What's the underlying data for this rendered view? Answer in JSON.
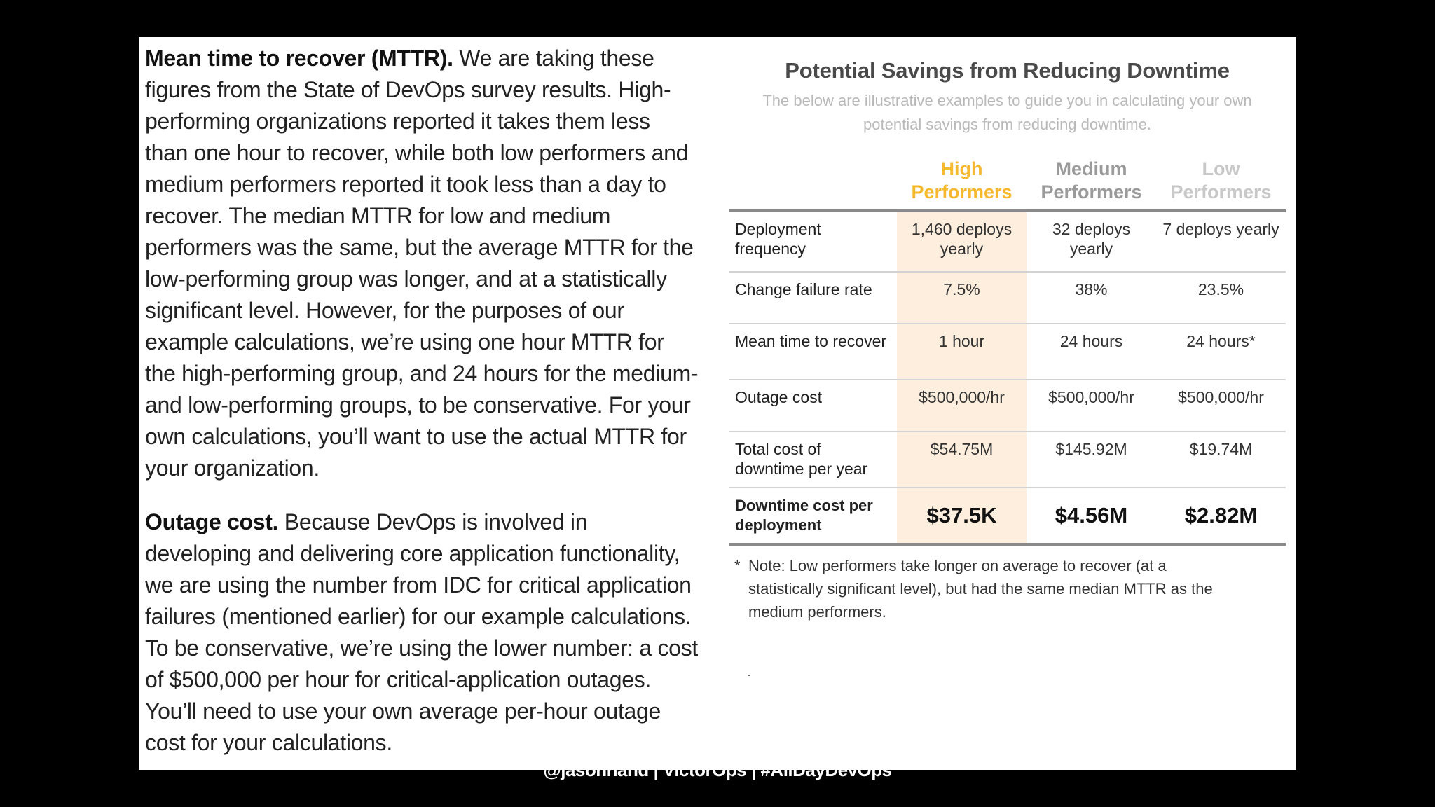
{
  "left_column": {
    "mttr_heading": "Mean time to recover (MTTR).",
    "mttr_body": " We are taking these figures from the State of DevOps survey results. High-performing organizations reported it takes them less than one hour to recover, while both low performers and medium performers reported it took less than a day to recover. The median MTTR for low and medium performers was the same, but the average MTTR for the low-performing group was longer, and at a statistically significant level. However, for the purposes of our example calculations, we’re using one hour MTTR for the high-performing group, and 24 hours for the medium- and low-performing groups, to be conservative. For your own calculations, you’ll want to use the actual MTTR for your organization.",
    "outage_heading": "Outage cost.",
    "outage_body": " Because DevOps is involved in developing and delivering core application functionality, we are using the number from IDC for critical application failures (mentioned earlier) for our example calculations. To be conservative, we’re using the lower number: a cost of $500,000 per hour for critical-application outages. You’ll need to use your own average per-hour outage cost for your calculations."
  },
  "table": {
    "title": "Potential Savings from Reducing Downtime",
    "subtitle": "The below are illustrative examples to guide you in calculating your own potential savings from reducing downtime.",
    "columns": [
      {
        "label_line1": "High",
        "label_line2": "Performers",
        "color": "#f5b82e"
      },
      {
        "label_line1": "Medium",
        "label_line2": "Performers",
        "color": "#9a9a9a"
      },
      {
        "label_line1": "Low",
        "label_line2": "Performers",
        "color": "#c8c8c8"
      }
    ],
    "rows": [
      {
        "label": "Deployment frequency",
        "values": [
          "1,460 deploys yearly",
          "32 deploys yearly",
          "7 deploys yearly"
        ]
      },
      {
        "label": "Change failure rate",
        "values": [
          "7.5%",
          "38%",
          "23.5%"
        ]
      },
      {
        "label": "Mean time to recover",
        "values": [
          "1 hour",
          "24 hours",
          "24 hours*"
        ]
      },
      {
        "label": "Outage cost",
        "values": [
          "$500,000/hr",
          "$500,000/hr",
          "$500,000/hr"
        ]
      },
      {
        "label": "Total cost of downtime per year",
        "values": [
          "$54.75M",
          "$145.92M",
          "$19.74M"
        ]
      },
      {
        "label": "Downtime cost per deployment",
        "values": [
          "$37.5K",
          "$4.56M",
          "$2.82M"
        ]
      }
    ],
    "highlight_color": "#fdeedd",
    "note_star": "*",
    "note": "Note: Low performers take longer on average to recover (at a statistically significant level), but had the same median MTTR as the medium performers."
  },
  "footer": "@jasonhand | VictorOps | #AllDayDevOps"
}
